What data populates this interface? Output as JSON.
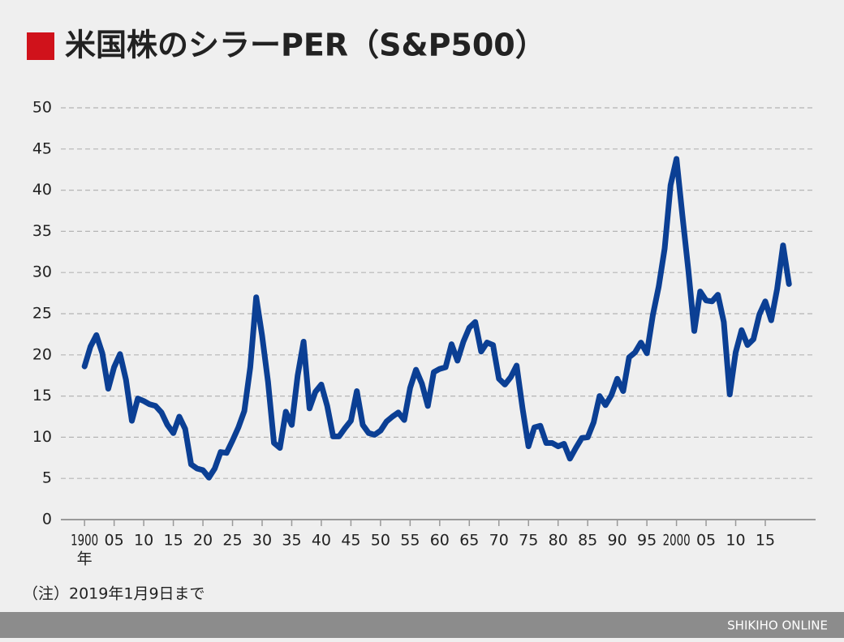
{
  "chart_data": {
    "type": "line",
    "title": "米国株のシラーPER（S&P500）",
    "xlabel": "年",
    "note": "（注）2019年1月9日まで",
    "footer": "SHIKIHO ONLINE",
    "x": [
      1900,
      1901,
      1902,
      1903,
      1904,
      1905,
      1906,
      1907,
      1908,
      1909,
      1910,
      1911,
      1912,
      1913,
      1914,
      1915,
      1916,
      1917,
      1918,
      1919,
      1920,
      1921,
      1922,
      1923,
      1924,
      1925,
      1926,
      1927,
      1928,
      1929,
      1930,
      1931,
      1932,
      1933,
      1934,
      1935,
      1936,
      1937,
      1938,
      1939,
      1940,
      1941,
      1942,
      1943,
      1944,
      1945,
      1946,
      1947,
      1948,
      1949,
      1950,
      1951,
      1952,
      1953,
      1954,
      1955,
      1956,
      1957,
      1958,
      1959,
      1960,
      1961,
      1962,
      1963,
      1964,
      1965,
      1966,
      1967,
      1968,
      1969,
      1970,
      1971,
      1972,
      1973,
      1974,
      1975,
      1976,
      1977,
      1978,
      1979,
      1980,
      1981,
      1982,
      1983,
      1984,
      1985,
      1986,
      1987,
      1988,
      1989,
      1990,
      1991,
      1992,
      1993,
      1994,
      1995,
      1996,
      1997,
      1998,
      1999,
      2000,
      2001,
      2002,
      2003,
      2004,
      2005,
      2006,
      2007,
      2008,
      2009,
      2010,
      2011,
      2012,
      2013,
      2014,
      2015,
      2016,
      2017,
      2018,
      2019
    ],
    "series": [
      {
        "color": "#0b3f94",
        "values": [
          18.6,
          21,
          22.4,
          20.2,
          15.9,
          18.5,
          20.1,
          17,
          12,
          14.7,
          14.4,
          14,
          13.8,
          13,
          11.5,
          10.5,
          12.5,
          11,
          6.7,
          6.2,
          6,
          5.1,
          6.2,
          8.2,
          8.1,
          9.6,
          11.2,
          13.2,
          18.5,
          27,
          22.3,
          16.7,
          9.3,
          8.7,
          13.1,
          11.5,
          17.5,
          21.6,
          13.5,
          15.5,
          16.4,
          13.8,
          10.1,
          10.1,
          11.1,
          12,
          15.6,
          11.5,
          10.5,
          10.3,
          10.8,
          11.9,
          12.5,
          13,
          12.1,
          16,
          18.2,
          16.5,
          13.8,
          17.9,
          18.3,
          18.5,
          21.3,
          19.3,
          21.6,
          23.3,
          24,
          20.4,
          21.5,
          21.2,
          17.1,
          16.4,
          17.3,
          18.7,
          13.5,
          8.9,
          11.2,
          11.4,
          9.3,
          9.3,
          8.9,
          9.2,
          7.4,
          8.7,
          9.9,
          10,
          11.8,
          15,
          13.9,
          15.1,
          17.1,
          15.6,
          19.7,
          20.3,
          21.5,
          20.2,
          24.8,
          28.3,
          32.9,
          40.6,
          43.8,
          36.9,
          30.3,
          22.9,
          27.7,
          26.6,
          26.5,
          27.3,
          24,
          15.2,
          20.3,
          23,
          21.2,
          21.9,
          24.9,
          26.5,
          24.2,
          28,
          33.3,
          28.6
        ]
      }
    ],
    "xlim": [
      1896,
      2023.5
    ],
    "ylim": [
      0,
      50
    ],
    "xticks": [
      1900,
      {
        "value": 1905,
        "label": "05"
      },
      {
        "value": 1910,
        "label": "10"
      },
      {
        "value": 1915,
        "label": "15"
      },
      {
        "value": 1920,
        "label": "20"
      },
      {
        "value": 1925,
        "label": "25"
      },
      {
        "value": 1930,
        "label": "30"
      },
      {
        "value": 1935,
        "label": "35"
      },
      {
        "value": 1940,
        "label": "40"
      },
      {
        "value": 1945,
        "label": "45"
      },
      {
        "value": 1950,
        "label": "50"
      },
      {
        "value": 1955,
        "label": "55"
      },
      {
        "value": 1960,
        "label": "60"
      },
      {
        "value": 1965,
        "label": "65"
      },
      {
        "value": 1970,
        "label": "70"
      },
      {
        "value": 1975,
        "label": "75"
      },
      {
        "value": 1980,
        "label": "80"
      },
      {
        "value": 1985,
        "label": "85"
      },
      {
        "value": 1990,
        "label": "90"
      },
      {
        "value": 1995,
        "label": "95"
      },
      2000,
      {
        "value": 2005,
        "label": "05"
      },
      {
        "value": 2010,
        "label": "10"
      },
      {
        "value": 2015,
        "label": "15"
      }
    ],
    "yticks": [
      0,
      5,
      10,
      15,
      20,
      25,
      30,
      35,
      40,
      45,
      50
    ],
    "grid": true
  }
}
